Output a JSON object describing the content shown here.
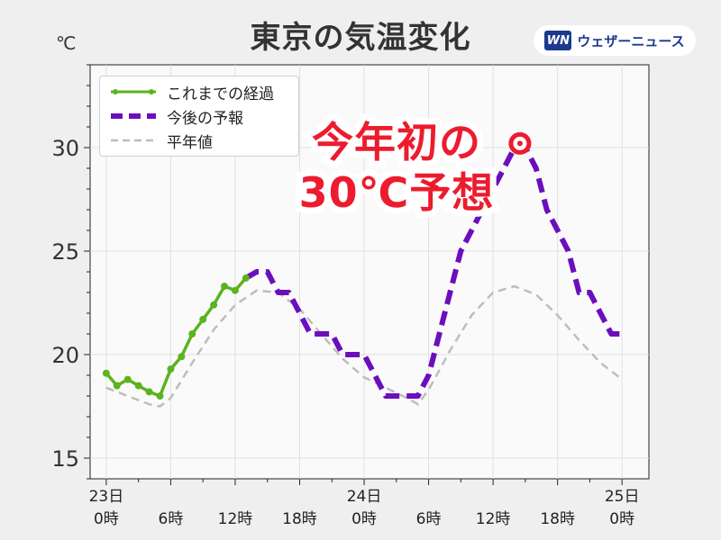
{
  "header": {
    "title": "東京の気温変化",
    "unit": "℃",
    "brand_mark": "WN",
    "brand_text": "ウェザーニュース"
  },
  "callout": {
    "line1": "今年初の",
    "line2": "30℃予想"
  },
  "colors": {
    "observed": "#5ab41e",
    "forecast": "#6b0fbd",
    "normal": "#bdbdbd",
    "callout": "#ec1c2e",
    "brand": "#1b3a8c"
  },
  "chart_data": {
    "type": "line",
    "title": "東京の気温変化",
    "ylabel": "℃",
    "xlim": [
      -1.5,
      50.5
    ],
    "ylim": [
      14,
      34
    ],
    "yticks": [
      15,
      20,
      25,
      30
    ],
    "grid": true,
    "legend_position": "top-left",
    "xticks": [
      {
        "x": 0,
        "line1": "23日",
        "line2": "0時"
      },
      {
        "x": 6,
        "line1": "",
        "line2": "6時"
      },
      {
        "x": 12,
        "line1": "",
        "line2": "12時"
      },
      {
        "x": 18,
        "line1": "",
        "line2": "18時"
      },
      {
        "x": 24,
        "line1": "24日",
        "line2": "0時"
      },
      {
        "x": 30,
        "line1": "",
        "line2": "6時"
      },
      {
        "x": 36,
        "line1": "",
        "line2": "12時"
      },
      {
        "x": 42,
        "line1": "",
        "line2": "18時"
      },
      {
        "x": 48,
        "line1": "25日",
        "line2": "0時"
      }
    ],
    "series": [
      {
        "name": "これまでの経過",
        "style": "solid-markers",
        "x": [
          0,
          1,
          2,
          3,
          4,
          5,
          6,
          7,
          8,
          9,
          10,
          11,
          12,
          13
        ],
        "y": [
          19.1,
          18.5,
          18.8,
          18.5,
          18.2,
          18.0,
          19.3,
          19.9,
          21.0,
          21.7,
          22.4,
          23.3,
          23.1,
          23.7
        ]
      },
      {
        "name": "今後の予報",
        "style": "dashed-step",
        "x": [
          13,
          14,
          15,
          16,
          17,
          18,
          19,
          20,
          21,
          22,
          23,
          24,
          25,
          26,
          27,
          28,
          29,
          30,
          31,
          32,
          33,
          34,
          35,
          36,
          37,
          38,
          39,
          40,
          41,
          42,
          43,
          44,
          45,
          46,
          47,
          48
        ],
        "y": [
          23.7,
          24.0,
          24.0,
          23.0,
          23.0,
          22.0,
          21.0,
          21.0,
          21.0,
          20.0,
          20.0,
          20.0,
          19.0,
          18.0,
          18.0,
          18.0,
          18.0,
          19.0,
          21.0,
          23.0,
          25.0,
          26.0,
          27.0,
          28.0,
          29.0,
          30.0,
          30.0,
          29.0,
          27.0,
          26.0,
          25.0,
          23.0,
          23.0,
          22.0,
          21.0,
          21.0
        ]
      },
      {
        "name": "平年値",
        "style": "dashed",
        "x": [
          0,
          2,
          4,
          5,
          6,
          8,
          10,
          12,
          14,
          16,
          18,
          20,
          22,
          24,
          26,
          28,
          29,
          30,
          32,
          34,
          36,
          38,
          40,
          42,
          44,
          46,
          48
        ],
        "y": [
          18.4,
          18.0,
          17.6,
          17.5,
          17.9,
          19.6,
          21.2,
          22.4,
          23.1,
          23.0,
          22.2,
          21.0,
          19.8,
          18.9,
          18.4,
          17.9,
          17.6,
          18.3,
          20.2,
          21.9,
          23.0,
          23.3,
          22.9,
          21.9,
          20.7,
          19.6,
          18.8
        ]
      }
    ],
    "annotation": {
      "x": 38.5,
      "y": 30.2,
      "text": "今年初の30℃予想"
    }
  }
}
